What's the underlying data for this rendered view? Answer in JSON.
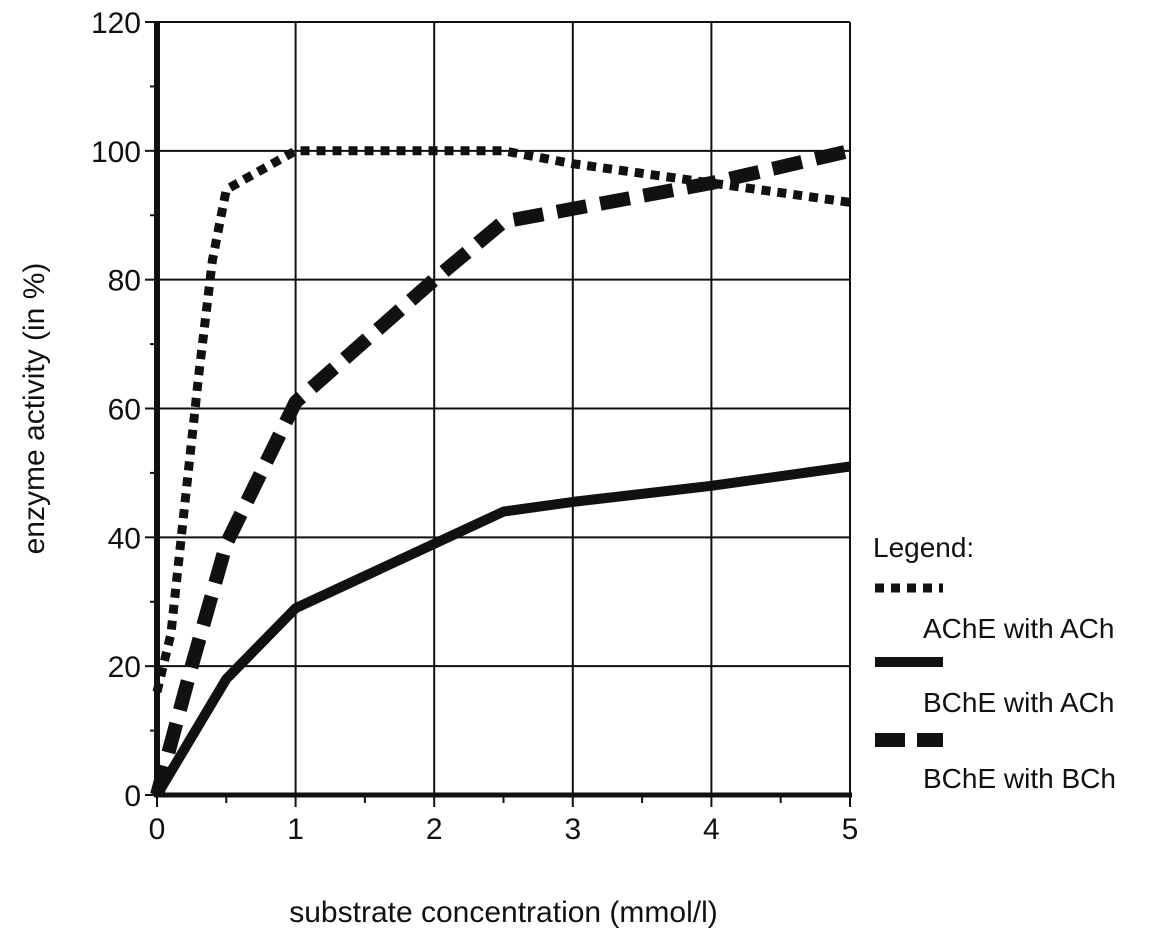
{
  "chart_data": {
    "type": "line",
    "xlabel": "substrate concentration (mmol/l)",
    "ylabel": "enzyme activity (in %)",
    "xlim": [
      0,
      5
    ],
    "ylim": [
      0,
      120
    ],
    "x_ticks": [
      0,
      1,
      2,
      3,
      4,
      5
    ],
    "y_ticks": [
      0,
      20,
      40,
      60,
      80,
      100,
      120
    ],
    "x_tick_labels": [
      "0",
      "1",
      "2",
      "3",
      "4",
      "5"
    ],
    "y_tick_labels": [
      "0",
      "20",
      "40",
      "60",
      "80",
      "100",
      "120"
    ],
    "grid": true,
    "legend": {
      "title": "Legend:",
      "placement": "right",
      "entries": [
        "AChE with ACh",
        "BChE with ACh",
        "BChE with BCh"
      ]
    },
    "series": [
      {
        "name": "AChE with ACh",
        "style": "dotted",
        "color": "#111111",
        "points": [
          [
            0,
            16
          ],
          [
            0.1,
            25
          ],
          [
            0.2,
            45
          ],
          [
            0.3,
            65
          ],
          [
            0.4,
            83
          ],
          [
            0.5,
            94
          ],
          [
            1,
            100
          ],
          [
            2,
            100
          ],
          [
            2.5,
            100
          ],
          [
            3,
            98
          ],
          [
            4,
            95
          ],
          [
            5,
            92
          ]
        ]
      },
      {
        "name": "BChE with ACh",
        "style": "solid",
        "color": "#111111",
        "points": [
          [
            0,
            0
          ],
          [
            0.5,
            18
          ],
          [
            1,
            29
          ],
          [
            2,
            39
          ],
          [
            2.5,
            44
          ],
          [
            3,
            45.5
          ],
          [
            4,
            48
          ],
          [
            5,
            51
          ]
        ]
      },
      {
        "name": "BChE with BCh",
        "style": "dashed",
        "color": "#111111",
        "points": [
          [
            0,
            0
          ],
          [
            0.25,
            20
          ],
          [
            0.5,
            39
          ],
          [
            1,
            61
          ],
          [
            2,
            80
          ],
          [
            2.5,
            89
          ],
          [
            3,
            91
          ],
          [
            4,
            95
          ],
          [
            5,
            100
          ]
        ]
      }
    ]
  }
}
